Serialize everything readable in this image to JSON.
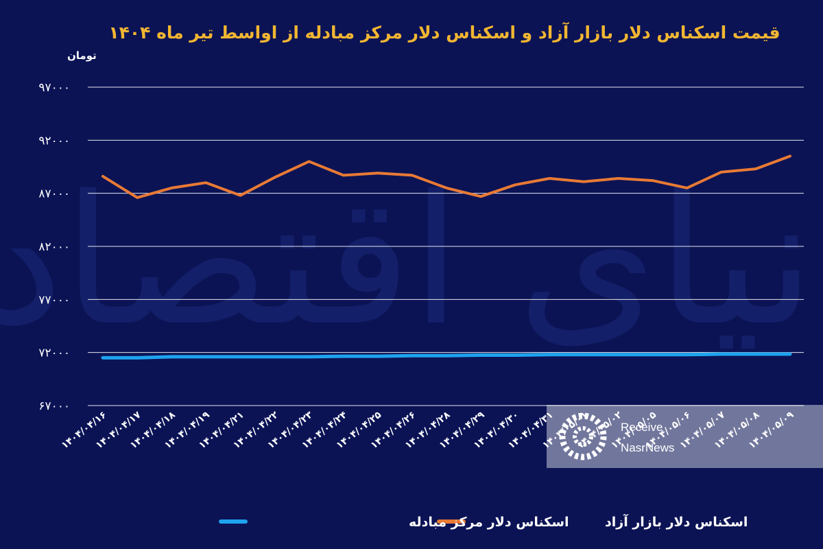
{
  "chart_data": {
    "type": "line",
    "title": "قیمت اسکناس دلار بازار آزاد و اسکناس دلار مرکز مبادله از اواسط تیر ماه ۱۴۰۴",
    "ylabel": "تومان",
    "ylim": [
      67000,
      97000
    ],
    "yticks": [
      "۹۷۰۰۰",
      "۹۲۰۰۰",
      "۸۷۰۰۰",
      "۸۲۰۰۰",
      "۷۷۰۰۰",
      "۷۲۰۰۰",
      "۶۷۰۰۰"
    ],
    "ytick_values": [
      97000,
      92000,
      87000,
      82000,
      77000,
      72000,
      67000
    ],
    "categories": [
      "۱۴۰۴/۰۴/۱۶",
      "۱۴۰۴/۰۴/۱۷",
      "۱۴۰۴/۰۴/۱۸",
      "۱۴۰۴/۰۴/۱۹",
      "۱۴۰۴/۰۴/۲۱",
      "۱۴۰۴/۰۴/۲۲",
      "۱۴۰۴/۰۴/۲۳",
      "۱۴۰۴/۰۴/۲۴",
      "۱۴۰۴/۰۴/۲۵",
      "۱۴۰۴/۰۴/۲۶",
      "۱۴۰۴/۰۴/۲۸",
      "۱۴۰۴/۰۴/۲۹",
      "۱۴۰۴/۰۴/۳۰",
      "۱۴۰۴/۰۴/۳۱",
      "۱۴۰۴/۰۵/۰۱",
      "۱۴۰۴/۰۵/۰۲",
      "۱۴۰۴/۰۵/۰۵",
      "۱۴۰۴/۰۵/۰۶",
      "۱۴۰۴/۰۵/۰۷",
      "۱۴۰۴/۰۵/۰۸",
      "۱۴۰۴/۰۵/۰۹"
    ],
    "series": [
      {
        "name": "اسکناس دلار بازار آزاد",
        "color": "#e87a35",
        "values": [
          88600,
          86600,
          87500,
          88000,
          86800,
          88500,
          90000,
          88700,
          88900,
          88700,
          87500,
          86700,
          87800,
          88400,
          88100,
          88400,
          88200,
          87500,
          89000,
          89300,
          90500
        ]
      },
      {
        "name": "اسکناس دلار مرکز مبادله",
        "color": "#1fa3ee",
        "values": [
          71500,
          71500,
          71600,
          71600,
          71600,
          71600,
          71600,
          71650,
          71650,
          71700,
          71700,
          71750,
          71750,
          71800,
          71800,
          71800,
          71800,
          71800,
          71850,
          71850,
          71850
        ]
      }
    ],
    "grid": true,
    "legend_position": "bottom"
  },
  "watermark": "دنیای اقتصاد",
  "badge": {
    "line1": "Receive",
    "line2": "NasrNews"
  }
}
